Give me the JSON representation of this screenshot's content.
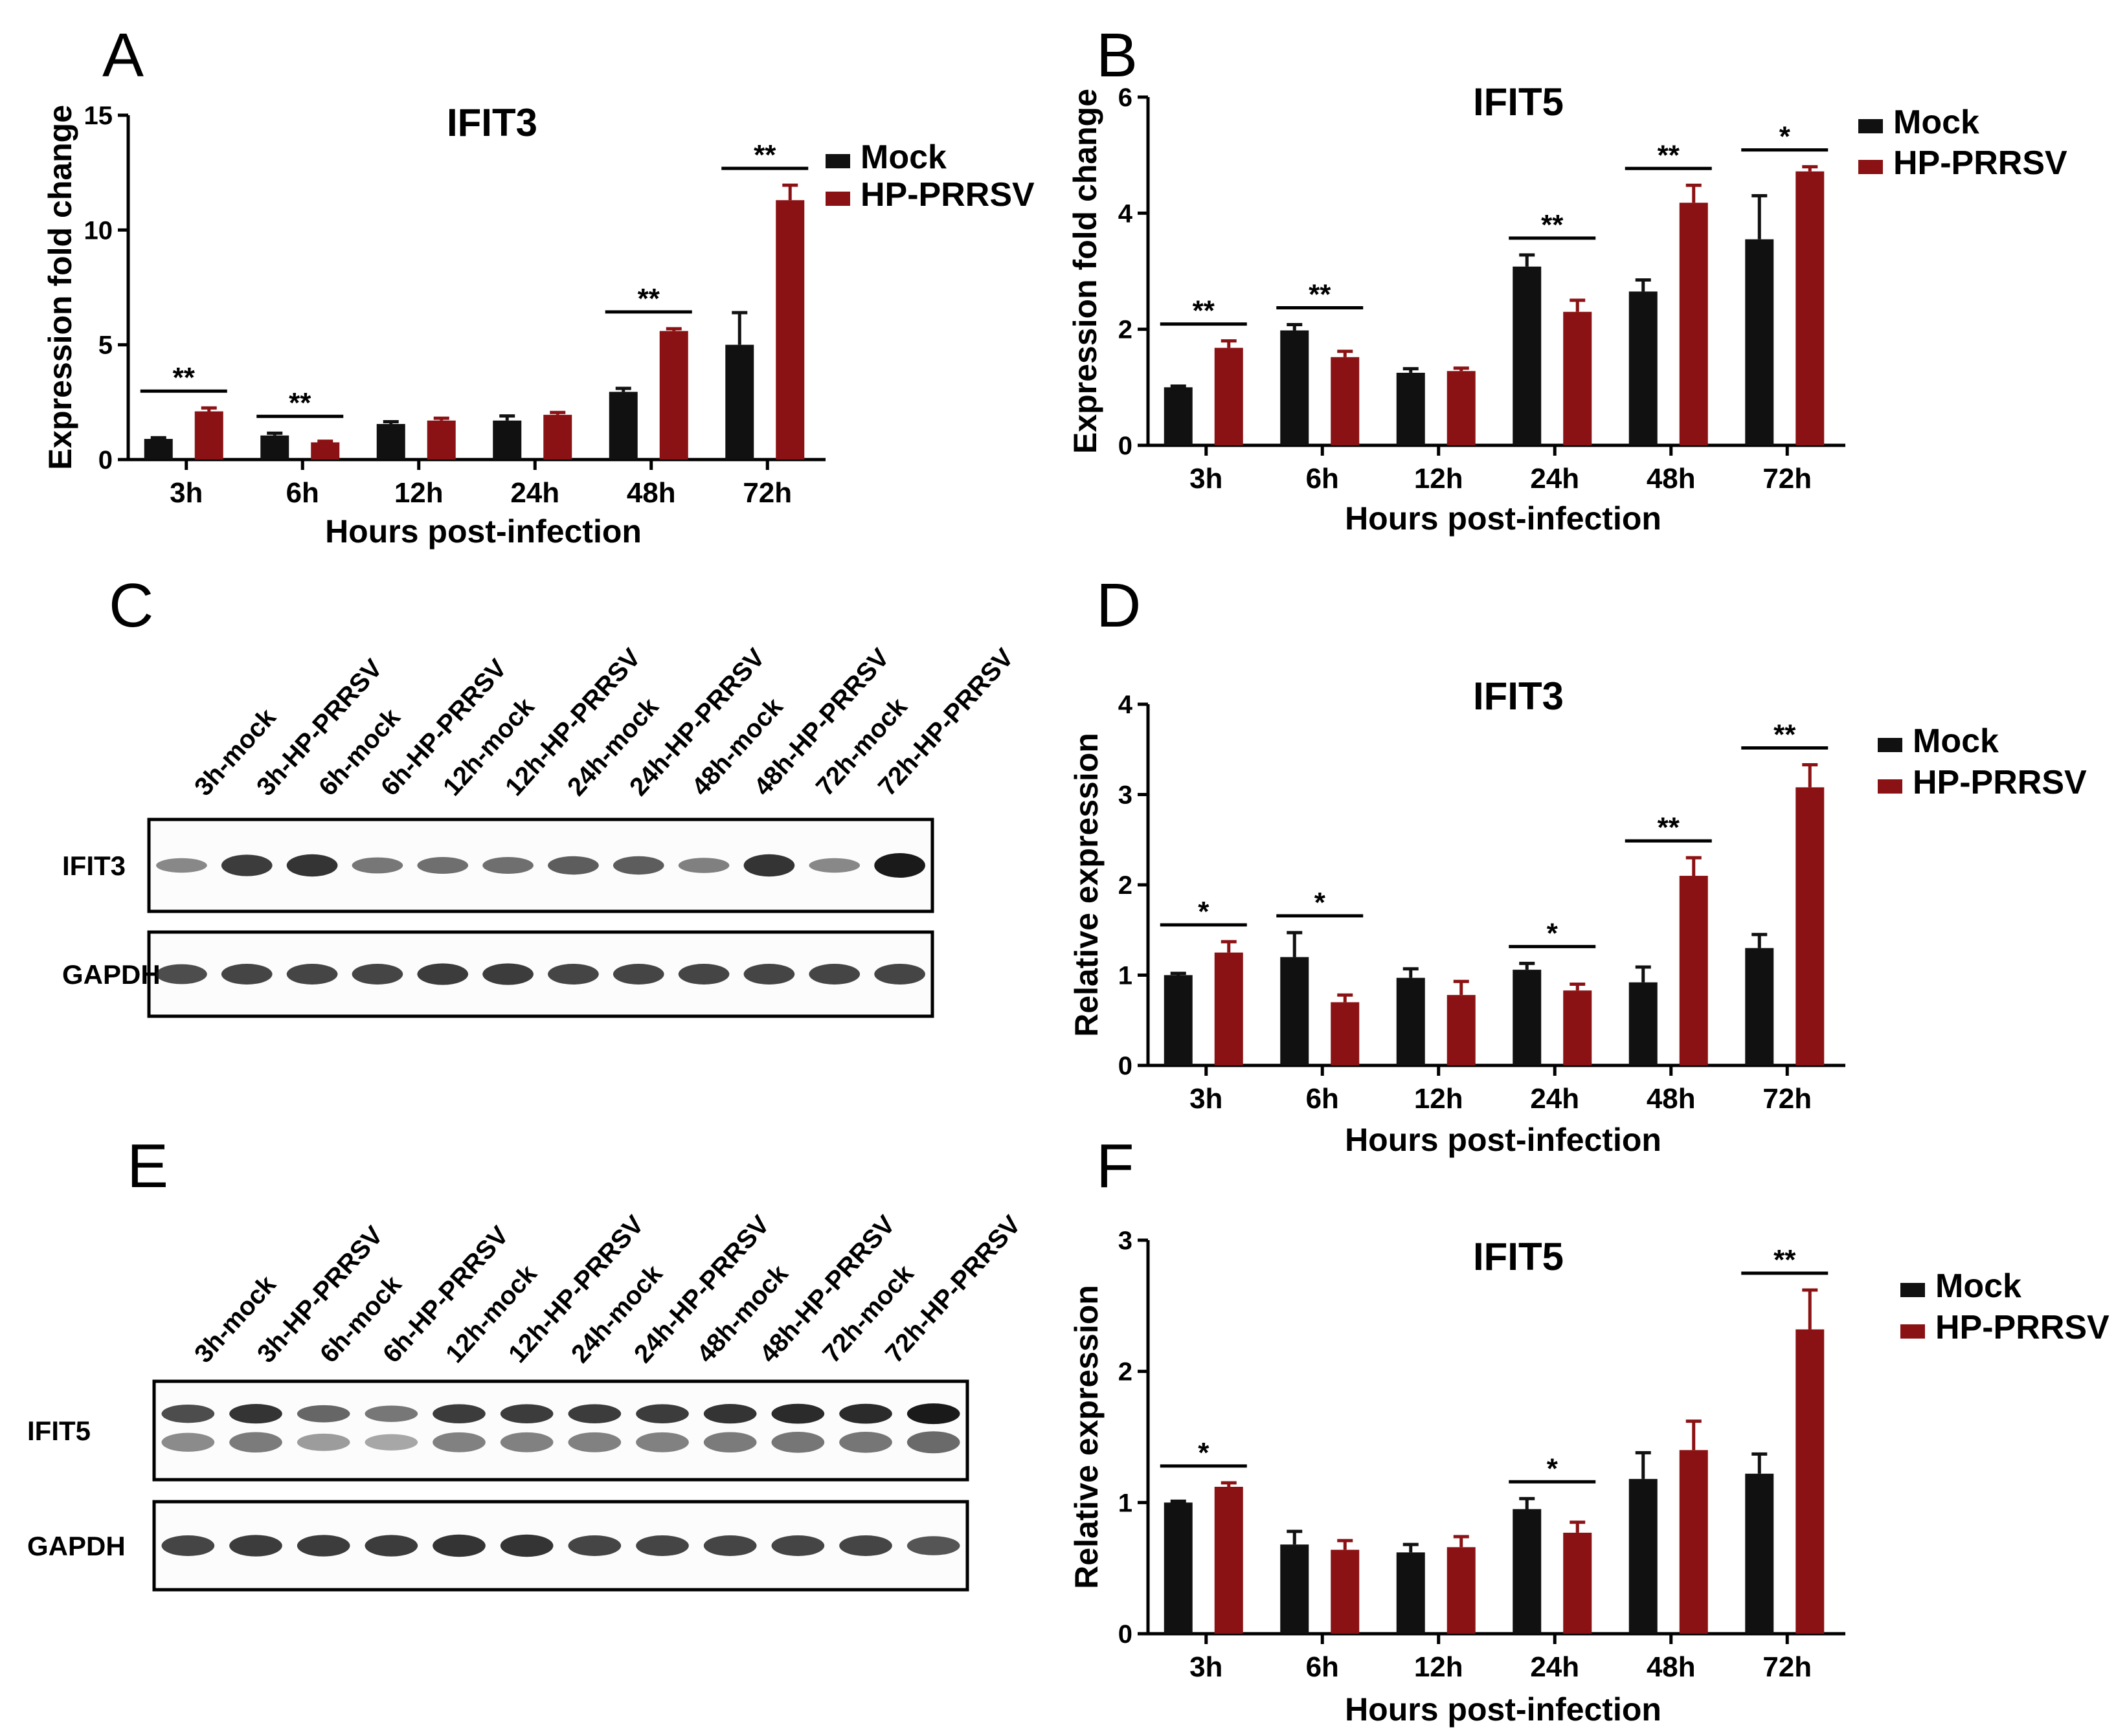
{
  "colors": {
    "mock": "#111111",
    "infected": "#8b1214",
    "blot_band": "#1a1a1a",
    "blot_band_light": "#5a5a5a"
  },
  "panels": {
    "A": "A",
    "B": "B",
    "C": "C",
    "D": "D",
    "E": "E",
    "F": "F"
  },
  "chart_data": [
    {
      "panel": "A",
      "type": "bar",
      "title": "IFIT3",
      "xlabel": "Hours post-infection",
      "ylabel": "Expression fold change",
      "ylim": [
        0,
        15
      ],
      "yticks": [
        "0",
        "5",
        "10",
        "15"
      ],
      "ytick_values": [
        0,
        5,
        10,
        15
      ],
      "categories": [
        "3h",
        "6h",
        "12h",
        "24h",
        "48h",
        "72h"
      ],
      "legend_position": "top-right",
      "grid": false,
      "series": [
        {
          "name": "Mock",
          "values": [
            0.9,
            1.05,
            1.55,
            1.7,
            2.95,
            5.0
          ],
          "errors": [
            0.05,
            0.1,
            0.1,
            0.2,
            0.15,
            1.4
          ]
        },
        {
          "name": "HP-PRRSV",
          "values": [
            2.1,
            0.75,
            1.7,
            1.95,
            5.6,
            11.3
          ],
          "errors": [
            0.15,
            0.05,
            0.1,
            0.1,
            0.1,
            0.65
          ]
        }
      ],
      "annotations": [
        {
          "category": 0,
          "label": "**"
        },
        {
          "category": 1,
          "label": "**"
        },
        {
          "category": 4,
          "label": "**"
        },
        {
          "category": 5,
          "label": "**"
        }
      ]
    },
    {
      "panel": "B",
      "type": "bar",
      "title": "IFIT5",
      "xlabel": "Hours post-infection",
      "ylabel": "Expression fold change",
      "ylim": [
        0,
        6
      ],
      "yticks": [
        "0",
        "2",
        "4",
        "6"
      ],
      "ytick_values": [
        0,
        2,
        4,
        6
      ],
      "categories": [
        "3h",
        "6h",
        "12h",
        "24h",
        "48h",
        "72h"
      ],
      "legend_position": "top-right",
      "grid": false,
      "series": [
        {
          "name": "Mock",
          "values": [
            1.0,
            1.98,
            1.25,
            3.08,
            2.65,
            3.55
          ],
          "errors": [
            0.02,
            0.1,
            0.07,
            0.2,
            0.2,
            0.75
          ]
        },
        {
          "name": "HP-PRRSV",
          "values": [
            1.68,
            1.52,
            1.28,
            2.3,
            4.18,
            4.72
          ],
          "errors": [
            0.12,
            0.1,
            0.05,
            0.2,
            0.3,
            0.08
          ]
        }
      ],
      "annotations": [
        {
          "category": 0,
          "label": "**"
        },
        {
          "category": 1,
          "label": "**"
        },
        {
          "category": 3,
          "label": "**"
        },
        {
          "category": 4,
          "label": "**"
        },
        {
          "category": 5,
          "label": "*"
        }
      ]
    },
    {
      "panel": "D",
      "type": "bar",
      "title": "IFIT3",
      "xlabel": "Hours post-infection",
      "ylabel": "Relative expression",
      "ylim": [
        0,
        4
      ],
      "yticks": [
        "0",
        "1",
        "2",
        "3",
        "4"
      ],
      "ytick_values": [
        0,
        1,
        2,
        3,
        4
      ],
      "categories": [
        "3h",
        "6h",
        "12h",
        "24h",
        "48h",
        "72h"
      ],
      "legend_position": "top-right",
      "grid": false,
      "series": [
        {
          "name": "Mock",
          "values": [
            1.0,
            1.2,
            0.97,
            1.06,
            0.92,
            1.3
          ],
          "errors": [
            0.02,
            0.27,
            0.1,
            0.07,
            0.17,
            0.15
          ]
        },
        {
          "name": "HP-PRRSV",
          "values": [
            1.25,
            0.7,
            0.78,
            0.83,
            2.1,
            3.08
          ],
          "errors": [
            0.12,
            0.08,
            0.15,
            0.07,
            0.2,
            0.25
          ]
        }
      ],
      "annotations": [
        {
          "category": 0,
          "label": "*"
        },
        {
          "category": 1,
          "label": "*"
        },
        {
          "category": 3,
          "label": "*"
        },
        {
          "category": 4,
          "label": "**"
        },
        {
          "category": 5,
          "label": "**"
        }
      ]
    },
    {
      "panel": "F",
      "type": "bar",
      "title": "IFIT5",
      "xlabel": "Hours post-infection",
      "ylabel": "Relative expression",
      "ylim": [
        0,
        3
      ],
      "yticks": [
        "0",
        "1",
        "2",
        "3"
      ],
      "ytick_values": [
        0,
        1,
        2,
        3
      ],
      "categories": [
        "3h",
        "6h",
        "12h",
        "24h",
        "48h",
        "72h"
      ],
      "legend_position": "top-right",
      "grid": false,
      "series": [
        {
          "name": "Mock",
          "values": [
            1.0,
            0.68,
            0.62,
            0.95,
            1.18,
            1.22
          ],
          "errors": [
            0.01,
            0.1,
            0.06,
            0.08,
            0.2,
            0.15
          ]
        },
        {
          "name": "HP-PRRSV",
          "values": [
            1.12,
            0.64,
            0.66,
            0.77,
            1.4,
            2.32
          ],
          "errors": [
            0.03,
            0.07,
            0.08,
            0.08,
            0.22,
            0.3
          ]
        }
      ],
      "annotations": [
        {
          "category": 0,
          "label": "*"
        },
        {
          "category": 3,
          "label": "*"
        },
        {
          "category": 5,
          "label": "**"
        }
      ]
    }
  ],
  "blots": [
    {
      "panel": "C",
      "lanes": [
        "3h-mock",
        "3h-HP-PRRSV",
        "6h-mock",
        "6h-HP-PRRSV",
        "12h-mock",
        "12h-HP-PRRSV",
        "24h-mock",
        "24h-HP-PRRSV",
        "48h-mock",
        "48h-HP-PRRSV",
        "72h-mock",
        "72h-HP-PRRSV"
      ],
      "rows": [
        {
          "label": "IFIT3",
          "intensity": [
            0.35,
            0.8,
            0.85,
            0.45,
            0.5,
            0.5,
            0.6,
            0.6,
            0.4,
            0.85,
            0.35,
            1.0
          ]
        },
        {
          "label": "GAPDH",
          "intensity": [
            0.7,
            0.75,
            0.75,
            0.75,
            0.8,
            0.8,
            0.75,
            0.75,
            0.75,
            0.75,
            0.75,
            0.75
          ]
        }
      ]
    },
    {
      "panel": "E",
      "lanes": [
        "3h-mock",
        "3h-HP-PRRSV",
        "6h-mock",
        "6h-HP-PRRSV",
        "12h-mock",
        "12h-HP-PRRSV",
        "24h-mock",
        "24h-HP-PRRSV",
        "48h-mock",
        "48h-HP-PRRSV",
        "72h-mock",
        "72h-HP-PRRSV"
      ],
      "rows": [
        {
          "label": "IFIT5",
          "intensity": [
            0.7,
            0.85,
            0.55,
            0.45,
            0.8,
            0.8,
            0.8,
            0.8,
            0.85,
            0.9,
            0.9,
            1.0
          ]
        },
        {
          "label": "GAPDH",
          "intensity": [
            0.75,
            0.8,
            0.8,
            0.8,
            0.85,
            0.85,
            0.75,
            0.75,
            0.75,
            0.75,
            0.75,
            0.65
          ]
        }
      ]
    }
  ]
}
